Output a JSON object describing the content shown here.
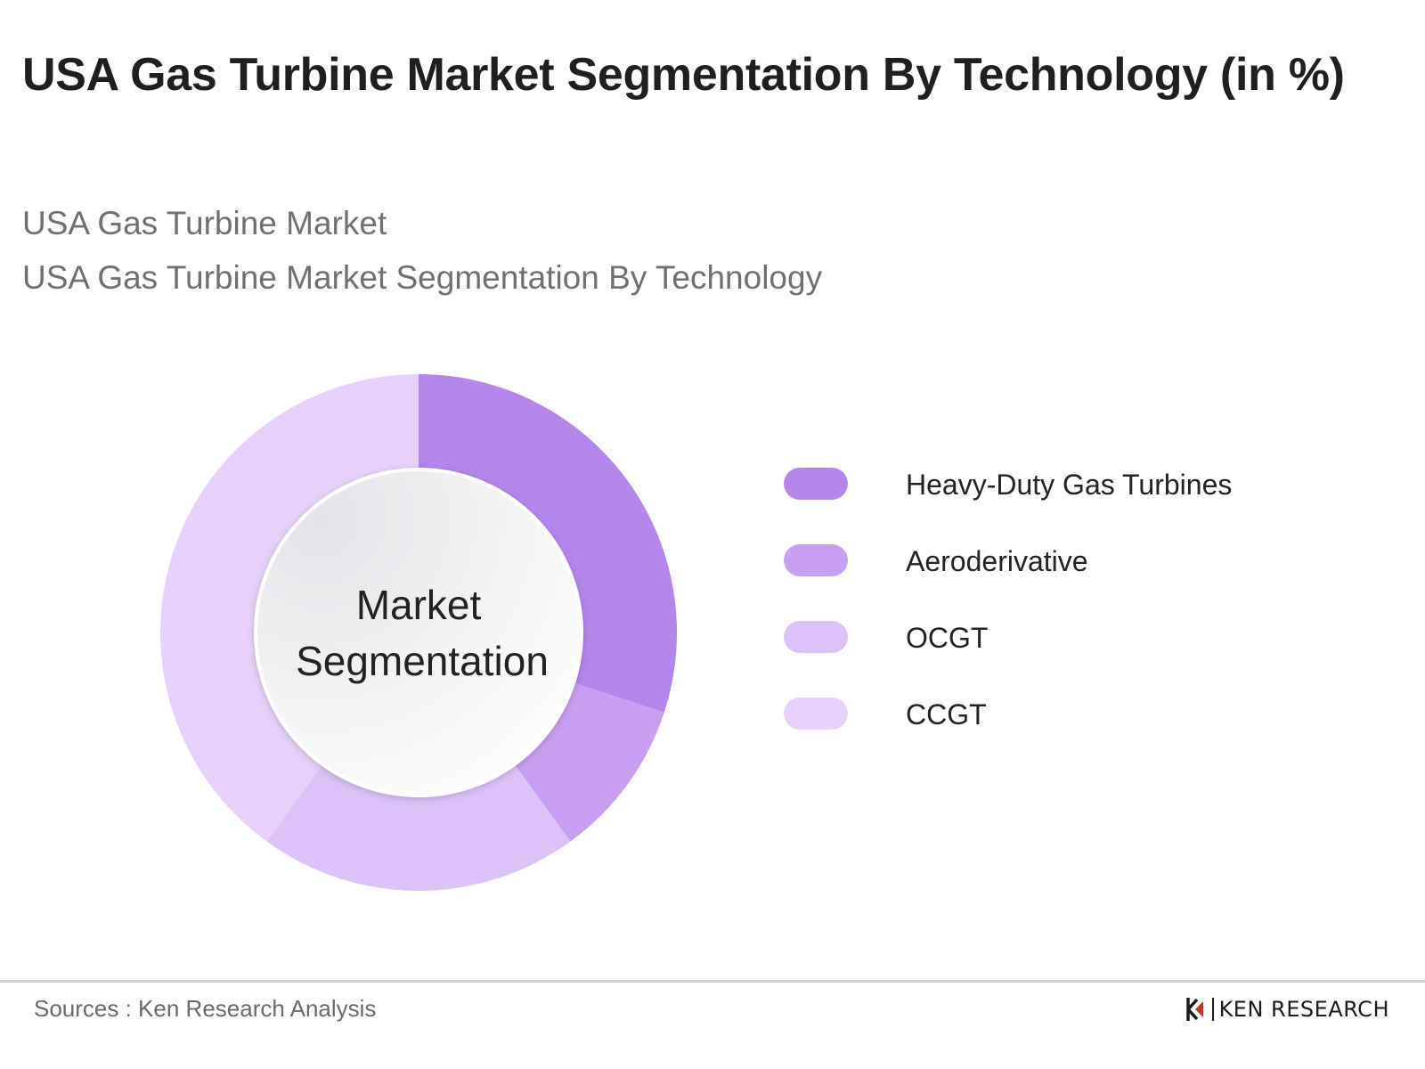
{
  "title": "USA Gas Turbine Market Segmentation By Technology (in %)",
  "subtitle_1": "USA Gas Turbine Market",
  "subtitle_2": "USA Gas Turbine Market Segmentation By Technology",
  "center_label": {
    "line1": "Market",
    "line2": "Segmentation"
  },
  "chart_data": {
    "type": "pie",
    "variant": "donut",
    "categories": [
      "Heavy-Duty Gas Turbines",
      "Aeroderivative",
      "OCGT",
      "CCGT"
    ],
    "values": [
      30,
      10,
      20,
      40
    ],
    "colors": [
      "#b585ec",
      "#c89ff0",
      "#dcc2f7",
      "#e5d1f9"
    ],
    "legend_position": "right"
  },
  "footer": {
    "source": "Sources : Ken Research Analysis",
    "brand": "KEN RESEARCH"
  }
}
